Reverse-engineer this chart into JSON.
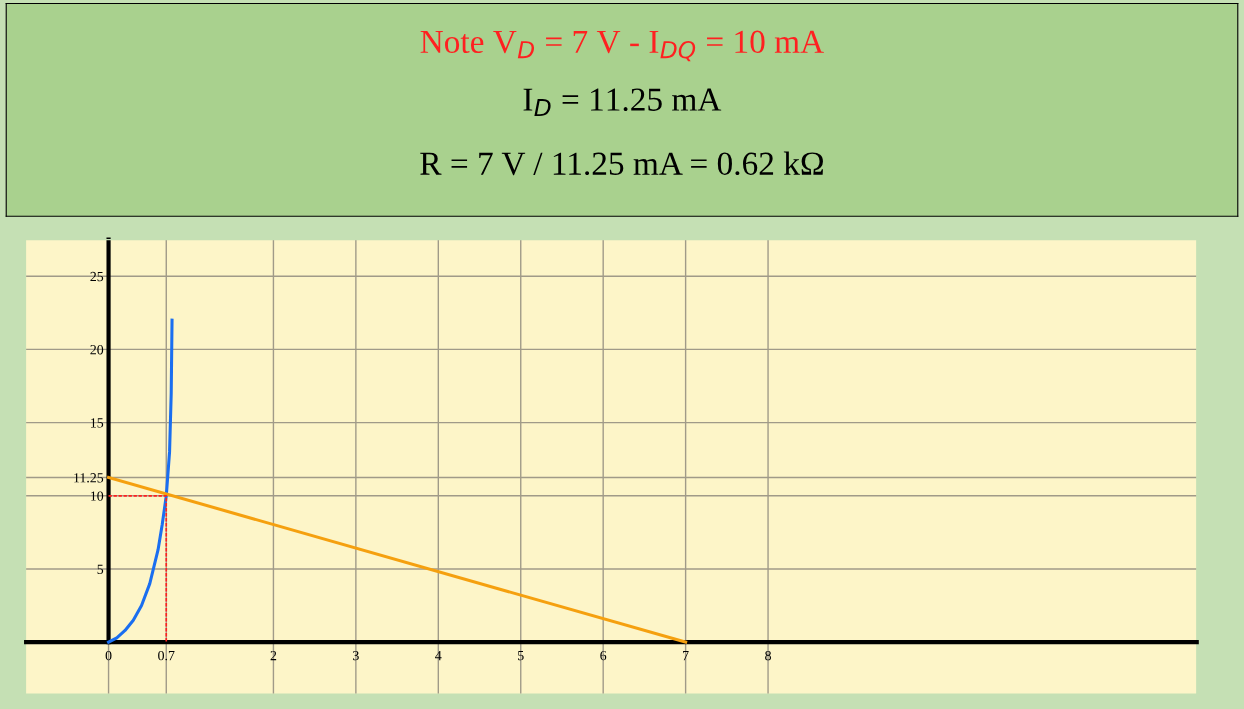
{
  "chart_data": {
    "type": "line",
    "title": "Note V$_{D}$ = 7 V - I$_{DQ}$ = 10 mA",
    "subtitle": "I$_{D}$ = 11.25 mA",
    "annotations": [
      "R = 7 V / 11.25 mA = 0.62 kΩ"
    ],
    "series": [
      {
        "x": [
          0,
          0.1,
          0.2,
          0.3,
          0.4,
          0.5,
          0.6,
          0.65,
          0.7,
          0.74,
          0.76,
          0.77
        ],
        "values": [
          0,
          0.3,
          0.8,
          1.5,
          2.5,
          4,
          6.3,
          8,
          10,
          13,
          17,
          22
        ],
        "color": "#1a6ef0"
      },
      {
        "x": [
          0,
          7
        ],
        "values": [
          11.25,
          0
        ],
        "color": "#f5a00f"
      },
      {
        "x": [
          0,
          0.7,
          0.7
        ],
        "values": [
          10,
          10,
          0
        ],
        "color": "#ff2020",
        "line_style": "dashed"
      }
    ],
    "xlim": [
      -1,
      13.2
    ],
    "ylim": [
      -3.5,
      27.5
    ],
    "xticks": [
      0,
      0.7,
      2,
      3,
      4,
      5,
      6,
      7,
      8
    ],
    "yticks": [
      5,
      10,
      {
        "value": 11.25,
        "label": "11.25"
      },
      15,
      20,
      25
    ],
    "grid": true,
    "marker": "none",
    "line_style": "solid"
  }
}
